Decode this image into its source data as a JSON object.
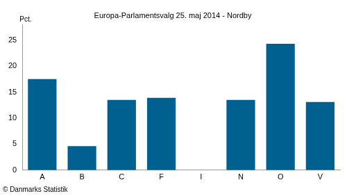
{
  "chart_data": {
    "type": "bar",
    "title": "Europa-Parlamentsvalg 25. maj 2014 - Nordby",
    "y_label": "Pct.",
    "source": "© Danmarks Statistik",
    "categories": [
      "A",
      "B",
      "C",
      "F",
      "I",
      "N",
      "O",
      "V"
    ],
    "values": [
      17.5,
      4.6,
      13.5,
      13.9,
      null,
      13.5,
      24.3,
      13.1
    ],
    "color": "#00608f",
    "ylim": [
      0,
      28
    ],
    "yticks": [
      0,
      5,
      10,
      15,
      20,
      25
    ],
    "grid": false
  }
}
